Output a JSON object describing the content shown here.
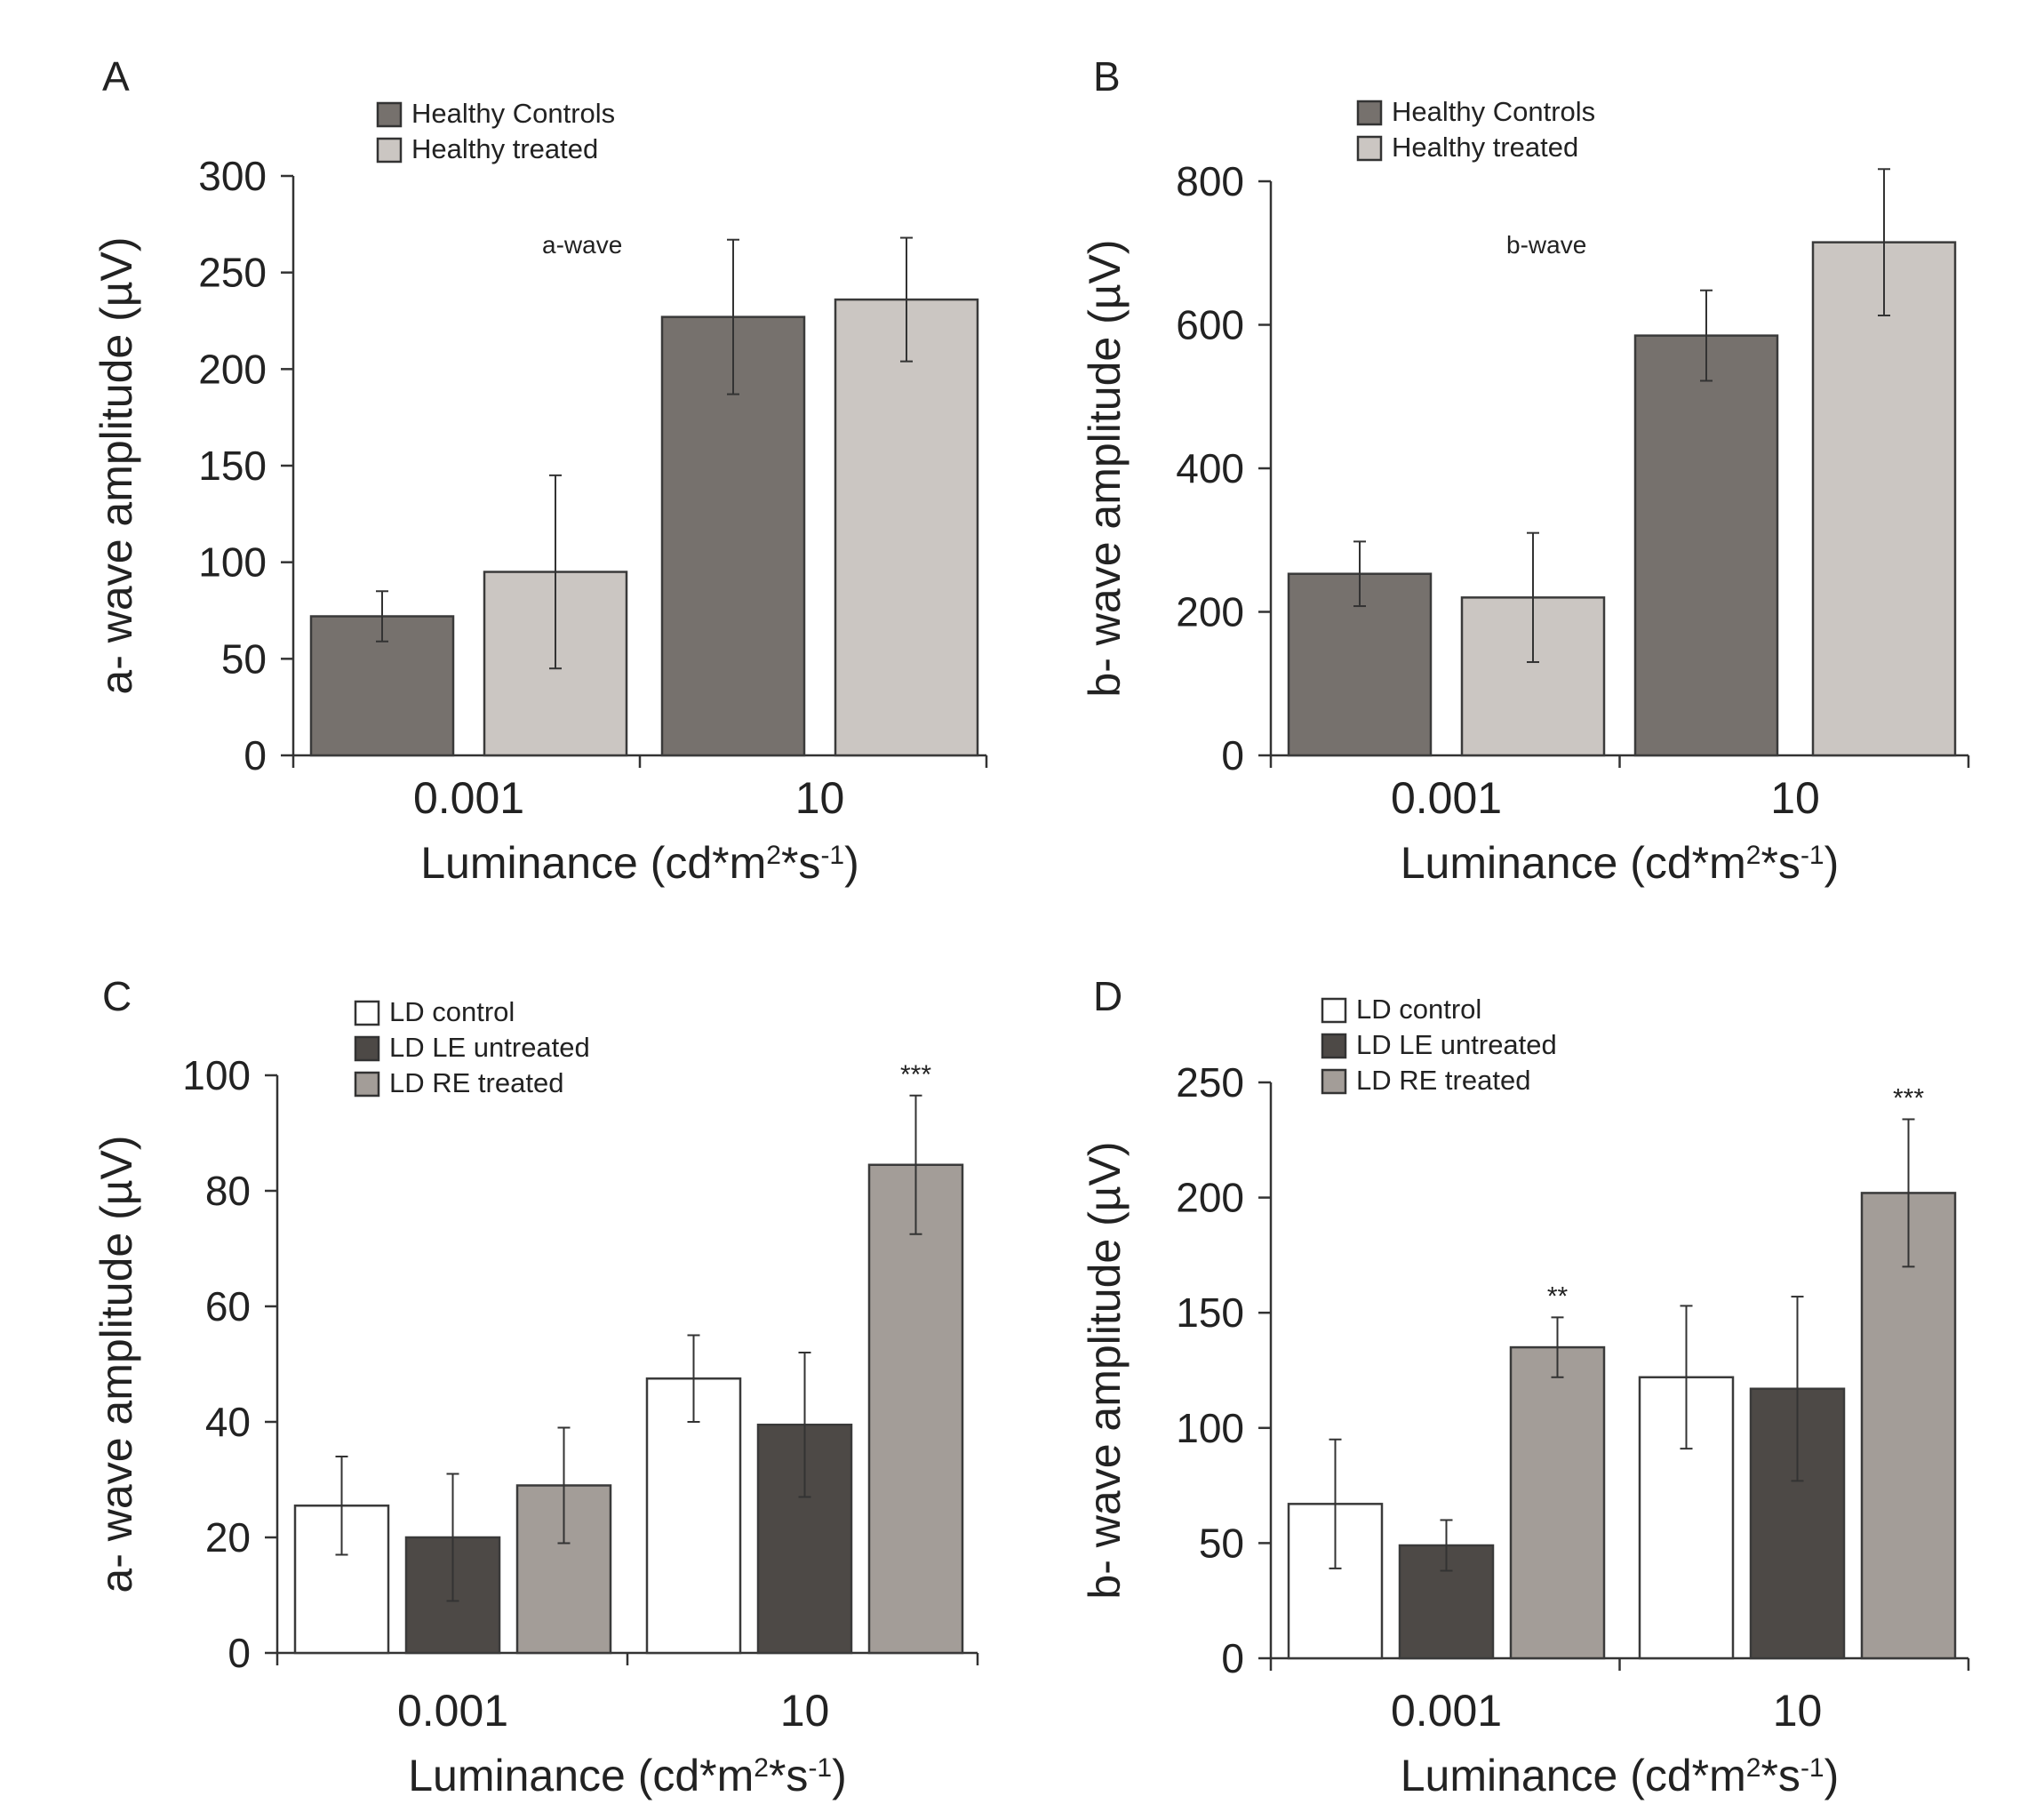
{
  "chart_data": [
    {
      "panel": "A",
      "type": "bar",
      "categories": [
        "0.001",
        "10"
      ],
      "xlabel": "Luminance (cd*m²*s⁻¹)",
      "ylabel": "a- wave amplitude (µV)",
      "ylim": [
        0,
        300
      ],
      "yticks": [
        0,
        50,
        100,
        150,
        200,
        250,
        300
      ],
      "annotation": "a-wave",
      "legend_position": "top-left",
      "series": [
        {
          "name": "Healthy Controls",
          "color": "#76716d",
          "values": [
            72,
            227
          ],
          "errors": [
            13,
            40
          ]
        },
        {
          "name": "Healthy treated",
          "color": "#cbc6c2",
          "values": [
            95,
            236
          ],
          "errors": [
            50,
            32
          ]
        }
      ],
      "significance": []
    },
    {
      "panel": "B",
      "type": "bar",
      "categories": [
        "0.001",
        "10"
      ],
      "xlabel": "Luminance (cd*m²*s⁻¹)",
      "ylabel": "b- wave amplitude (µV)",
      "ylim": [
        0,
        800
      ],
      "yticks": [
        0,
        200,
        400,
        600,
        800
      ],
      "annotation": "b-wave",
      "legend_position": "top-left",
      "series": [
        {
          "name": "Healthy Controls",
          "color": "#76716d",
          "values": [
            253,
            585
          ],
          "errors": [
            45,
            63
          ]
        },
        {
          "name": "Healthy treated",
          "color": "#cbc6c2",
          "values": [
            220,
            715
          ],
          "errors": [
            90,
            102
          ]
        }
      ],
      "significance": []
    },
    {
      "panel": "C",
      "type": "bar",
      "categories": [
        "0.001",
        "10"
      ],
      "xlabel": "Luminance (cd*m²*s⁻¹)",
      "ylabel": "a- wave amplitude (µV)",
      "ylim": [
        0,
        100
      ],
      "yticks": [
        0,
        20,
        40,
        60,
        80,
        100
      ],
      "legend_position": "top-left",
      "series": [
        {
          "name": "LD control",
          "color": "#ffffff",
          "values": [
            25.5,
            47.5
          ],
          "errors": [
            8.5,
            7.5
          ]
        },
        {
          "name": "LD LE untreated",
          "color": "#4d4946",
          "values": [
            20,
            39.5
          ],
          "errors": [
            11,
            12.5
          ]
        },
        {
          "name": "LD RE treated",
          "color": "#a39d98",
          "values": [
            29,
            84.5
          ],
          "errors": [
            10,
            12
          ]
        }
      ],
      "significance": [
        {
          "label": "***",
          "category": 1,
          "series": 2
        }
      ]
    },
    {
      "panel": "D",
      "type": "bar",
      "categories": [
        "0.001",
        "10"
      ],
      "xlabel": "Luminance (cd*m²*s⁻¹)",
      "ylabel": "b- wave amplitude (µV)",
      "ylim": [
        0,
        250
      ],
      "yticks": [
        0,
        50,
        100,
        150,
        200,
        250
      ],
      "legend_position": "top-left",
      "series": [
        {
          "name": "LD control",
          "color": "#ffffff",
          "values": [
            67,
            122
          ],
          "errors": [
            28,
            31
          ]
        },
        {
          "name": "LD LE untreated",
          "color": "#4d4946",
          "values": [
            49,
            117
          ],
          "errors": [
            11,
            40
          ]
        },
        {
          "name": "LD RE treated",
          "color": "#a39d98",
          "values": [
            135,
            202
          ],
          "errors": [
            13,
            32
          ]
        }
      ],
      "significance": [
        {
          "label": "**",
          "category": 0,
          "series": 2
        },
        {
          "label": "***",
          "category": 1,
          "series": 2
        }
      ]
    }
  ]
}
